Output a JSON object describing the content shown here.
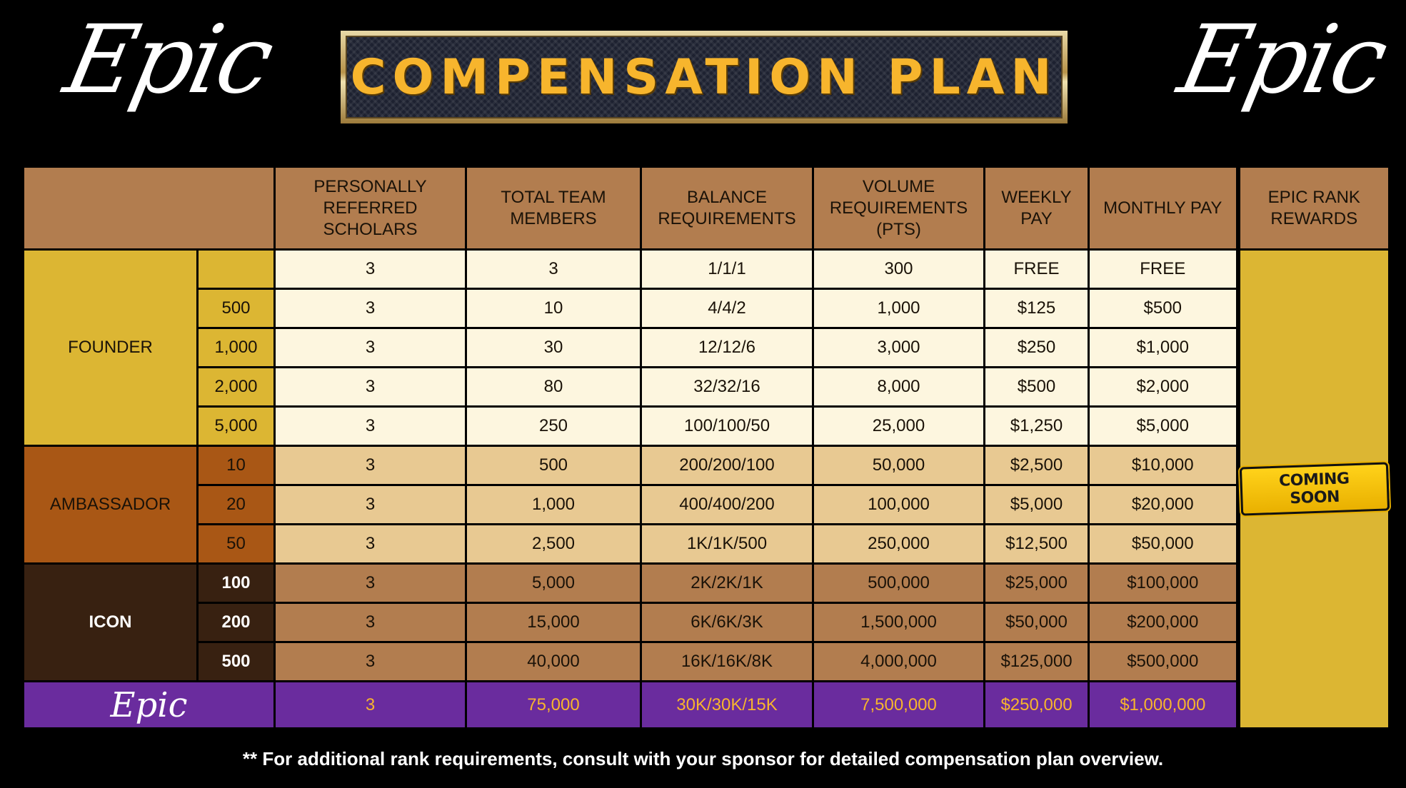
{
  "logo": {
    "text": "Epic"
  },
  "title": "COMPENSATION PLAN",
  "headers": {
    "personally_referred": "PERSONALLY REFERRED SCHOLARS",
    "total_team": "TOTAL TEAM MEMBERS",
    "balance": "BALANCE REQUIREMENTS",
    "volume": "VOLUME REQUIREMENTS (PTS)",
    "weekly": "WEEKLY PAY",
    "monthly": "MONTHLY PAY",
    "rewards": "EPIC RANK REWARDS"
  },
  "ranks": {
    "founder": "FOUNDER",
    "ambassador": "AMBASSADOR",
    "icon": "ICON",
    "epic": "Epic"
  },
  "rows": [
    {
      "level": "",
      "referred": "3",
      "team": "3",
      "balance": "1/1/1",
      "volume": "300",
      "weekly": "FREE",
      "monthly": "FREE"
    },
    {
      "level": "500",
      "referred": "3",
      "team": "10",
      "balance": "4/4/2",
      "volume": "1,000",
      "weekly": "$125",
      "monthly": "$500"
    },
    {
      "level": "1,000",
      "referred": "3",
      "team": "30",
      "balance": "12/12/6",
      "volume": "3,000",
      "weekly": "$250",
      "monthly": "$1,000"
    },
    {
      "level": "2,000",
      "referred": "3",
      "team": "80",
      "balance": "32/32/16",
      "volume": "8,000",
      "weekly": "$500",
      "monthly": "$2,000"
    },
    {
      "level": "5,000",
      "referred": "3",
      "team": "250",
      "balance": "100/100/50",
      "volume": "25,000",
      "weekly": "$1,250",
      "monthly": "$5,000"
    },
    {
      "level": "10",
      "referred": "3",
      "team": "500",
      "balance": "200/200/100",
      "volume": "50,000",
      "weekly": "$2,500",
      "monthly": "$10,000"
    },
    {
      "level": "20",
      "referred": "3",
      "team": "1,000",
      "balance": "400/400/200",
      "volume": "100,000",
      "weekly": "$5,000",
      "monthly": "$20,000"
    },
    {
      "level": "50",
      "referred": "3",
      "team": "2,500",
      "balance": "1K/1K/500",
      "volume": "250,000",
      "weekly": "$12,500",
      "monthly": "$50,000"
    },
    {
      "level": "100",
      "referred": "3",
      "team": "5,000",
      "balance": "2K/2K/1K",
      "volume": "500,000",
      "weekly": "$25,000",
      "monthly": "$100,000"
    },
    {
      "level": "200",
      "referred": "3",
      "team": "15,000",
      "balance": "6K/6K/3K",
      "volume": "1,500,000",
      "weekly": "$50,000",
      "monthly": "$200,000"
    },
    {
      "level": "500",
      "referred": "3",
      "team": "40,000",
      "balance": "16K/16K/8K",
      "volume": "4,000,000",
      "weekly": "$125,000",
      "monthly": "$500,000"
    },
    {
      "level": "",
      "referred": "3",
      "team": "75,000",
      "balance": "30K/30K/15K",
      "volume": "7,500,000",
      "weekly": "$250,000",
      "monthly": "$1,000,000"
    }
  ],
  "badge": "COMING SOON",
  "footer": "** For additional rank requirements, consult with your sponsor for detailed compensation plan overview.",
  "colors": {
    "header": "#b27d4f",
    "founder": "#dcb633",
    "ambassador": "#a95715",
    "icon": "#382111",
    "epic": "#6a2c9e",
    "title_gold": "#f7b52d"
  }
}
